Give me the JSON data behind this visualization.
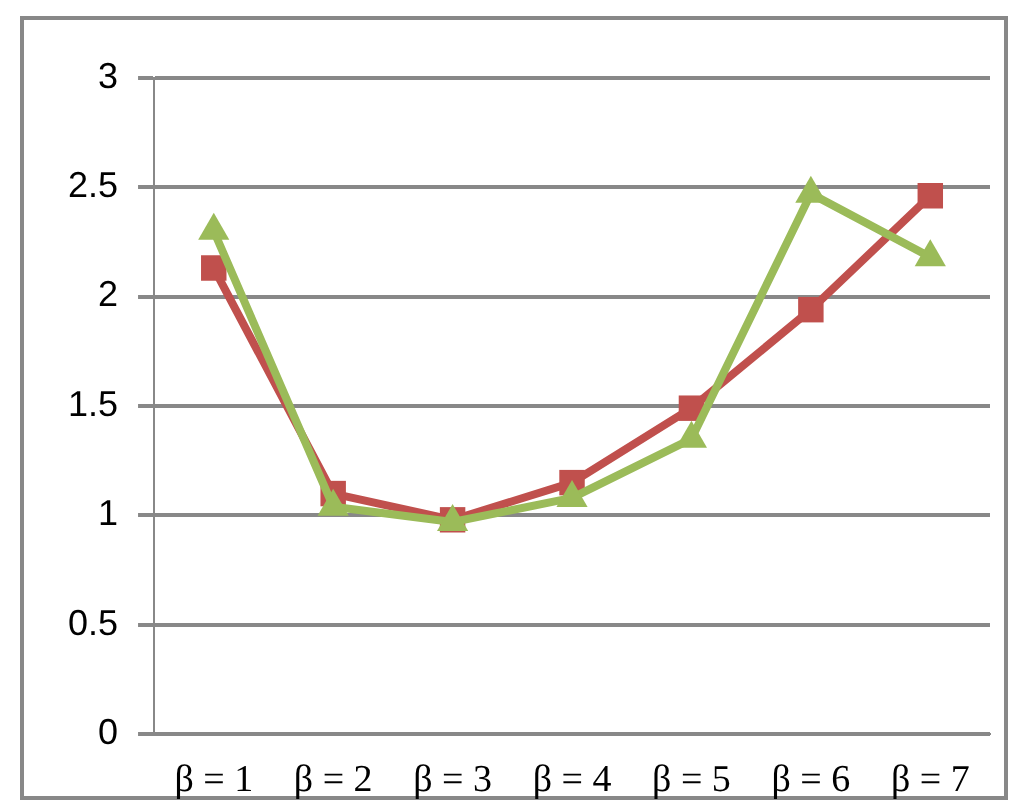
{
  "chart_data": {
    "type": "line",
    "categories": [
      "β = 1",
      "β = 2",
      "β = 3",
      "β = 4",
      "β = 5",
      "β = 6",
      "β = 7"
    ],
    "series": [
      {
        "color": "#c0504d",
        "marker": "square",
        "values": [
          2.13,
          1.1,
          0.98,
          1.15,
          1.49,
          1.94,
          2.46
        ]
      },
      {
        "color": "#9bbb59",
        "marker": "triangle",
        "values": [
          2.3,
          1.04,
          0.97,
          1.08,
          1.35,
          2.47,
          2.18
        ]
      }
    ],
    "ylim": [
      0,
      3
    ],
    "yticks": [
      0,
      0.5,
      1,
      1.5,
      2,
      2.5,
      3
    ],
    "grid": "y",
    "legend": false,
    "line_style": "solid"
  }
}
